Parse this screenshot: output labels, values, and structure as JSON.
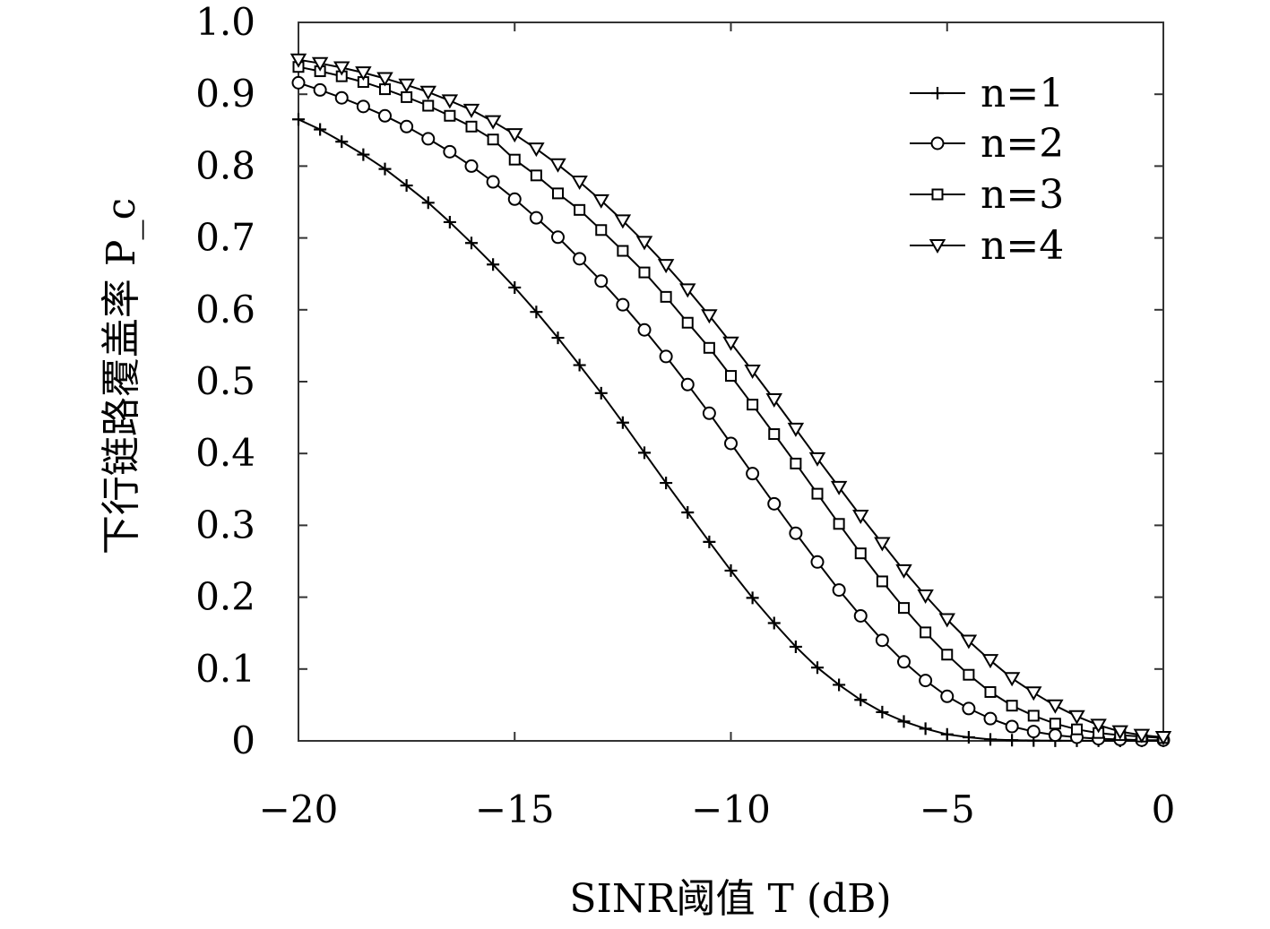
{
  "chart_data": {
    "type": "line",
    "title": "",
    "xlabel": "SINR阈值 T (dB)",
    "ylabel": "下行链路覆盖率 P_c",
    "xlim": [
      -20,
      0
    ],
    "ylim": [
      0,
      1.0
    ],
    "xticks": [
      -20,
      -15,
      -10,
      -5,
      0
    ],
    "xtick_labels": [
      "−20",
      "−15",
      "−10",
      "−5",
      "0"
    ],
    "yticks": [
      0,
      0.1,
      0.2,
      0.3,
      0.4,
      0.5,
      0.6,
      0.7,
      0.8,
      0.9,
      1.0
    ],
    "ytick_labels": [
      "0",
      "0.1",
      "0.2",
      "0.3",
      "0.4",
      "0.5",
      "0.6",
      "0.7",
      "0.8",
      "0.9",
      "1.0"
    ],
    "grid": false,
    "legend_position": "top-right",
    "x": [
      -20,
      -19.5,
      -19,
      -18.5,
      -18,
      -17.5,
      -17,
      -16.5,
      -16,
      -15.5,
      -15,
      -14.5,
      -14,
      -13.5,
      -13,
      -12.5,
      -12,
      -11.5,
      -11,
      -10.5,
      -10,
      -9.5,
      -9,
      -8.5,
      -8,
      -7.5,
      -7,
      -6.5,
      -6,
      -5.5,
      -5,
      -4.5,
      -4,
      -3.5,
      -3,
      -2.5,
      -2,
      -1.5,
      -1,
      -0.5,
      0
    ],
    "series": [
      {
        "name": "n=1",
        "marker": "plus",
        "values": [
          0.865,
          0.851,
          0.834,
          0.816,
          0.796,
          0.773,
          0.749,
          0.722,
          0.693,
          0.663,
          0.631,
          0.597,
          0.561,
          0.523,
          0.484,
          0.443,
          0.401,
          0.359,
          0.318,
          0.277,
          0.237,
          0.199,
          0.164,
          0.131,
          0.102,
          0.078,
          0.057,
          0.04,
          0.027,
          0.017,
          0.009,
          0.005,
          0.002,
          0.001,
          0.0005,
          0.0002,
          0.0001,
          0.0001,
          0.0,
          0.0,
          0.0
        ]
      },
      {
        "name": "n=2",
        "marker": "circle",
        "values": [
          0.916,
          0.906,
          0.895,
          0.883,
          0.87,
          0.855,
          0.838,
          0.82,
          0.8,
          0.778,
          0.754,
          0.728,
          0.701,
          0.671,
          0.64,
          0.607,
          0.572,
          0.535,
          0.496,
          0.456,
          0.414,
          0.372,
          0.33,
          0.289,
          0.249,
          0.21,
          0.174,
          0.14,
          0.11,
          0.084,
          0.062,
          0.045,
          0.031,
          0.02,
          0.013,
          0.008,
          0.005,
          0.003,
          0.002,
          0.001,
          0.001
        ]
      },
      {
        "name": "n=3",
        "marker": "square",
        "values": [
          0.938,
          0.932,
          0.925,
          0.917,
          0.907,
          0.896,
          0.884,
          0.87,
          0.855,
          0.837,
          0.809,
          0.787,
          0.762,
          0.739,
          0.711,
          0.682,
          0.652,
          0.618,
          0.582,
          0.547,
          0.508,
          0.468,
          0.427,
          0.386,
          0.344,
          0.302,
          0.261,
          0.222,
          0.185,
          0.151,
          0.12,
          0.092,
          0.068,
          0.049,
          0.035,
          0.024,
          0.016,
          0.011,
          0.008,
          0.006,
          0.004
        ]
      },
      {
        "name": "n=4",
        "marker": "triangle-down",
        "values": [
          0.948,
          0.943,
          0.937,
          0.93,
          0.922,
          0.913,
          0.903,
          0.891,
          0.878,
          0.862,
          0.844,
          0.824,
          0.802,
          0.778,
          0.752,
          0.724,
          0.694,
          0.662,
          0.628,
          0.592,
          0.554,
          0.515,
          0.475,
          0.434,
          0.393,
          0.353,
          0.313,
          0.275,
          0.237,
          0.202,
          0.169,
          0.139,
          0.112,
          0.087,
          0.067,
          0.049,
          0.034,
          0.022,
          0.013,
          0.008,
          0.005
        ]
      }
    ]
  }
}
